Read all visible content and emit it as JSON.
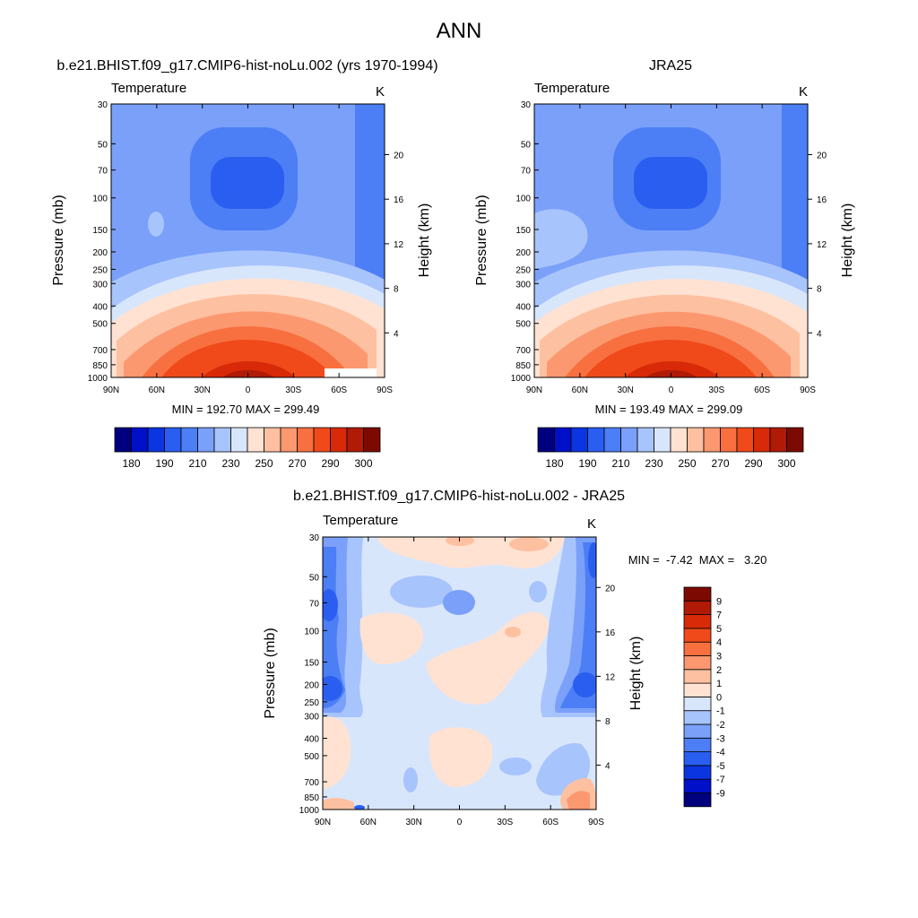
{
  "figure": {
    "title": "ANN"
  },
  "colors": {
    "abs_levels": [
      "#00007f",
      "#0010c8",
      "#0a35e0",
      "#2a5ef0",
      "#4c7ef5",
      "#7aa0fa",
      "#a8c4fc",
      "#d8e6fc",
      "#ffe2d2",
      "#fdc0a0",
      "#fb9870",
      "#f87040",
      "#f04a1a",
      "#d82a08",
      "#b01a06",
      "#7c0a02"
    ],
    "diff_levels": [
      "#00007f",
      "#0010c8",
      "#0a35e0",
      "#2a5ef0",
      "#4c7ef5",
      "#7aa0fa",
      "#a8c4fc",
      "#d8e6fc",
      "#ffe2d2",
      "#fdc0a0",
      "#fb9870",
      "#f87040",
      "#f04a1a",
      "#d82a08",
      "#b01a06",
      "#7c0a02"
    ]
  },
  "chart_data": [
    {
      "type": "heatmap",
      "title": "b.e21.BHIST.f09_g17.CMIP6-hist-noLu.002 (yrs 1970-1994)",
      "subtitle_left": "Temperature",
      "subtitle_right": "K",
      "xlabel": "",
      "ylabel": "Pressure (mb)",
      "ylabel_right": "Height (km)",
      "x_ticks": [
        "90N",
        "60N",
        "30N",
        "0",
        "30S",
        "60S",
        "90S"
      ],
      "y_ticks": [
        "30",
        "50",
        "70",
        "100",
        "150",
        "200",
        "250",
        "300",
        "400",
        "500",
        "700",
        "850",
        "1000"
      ],
      "y_right_ticks": [
        "20",
        "16",
        "12",
        "8",
        "4"
      ],
      "stats": "MIN = 192.70  MAX = 299.49",
      "min": 192.7,
      "max": 299.49,
      "colorbar_labels": [
        "180",
        "190",
        "210",
        "230",
        "250",
        "270",
        "290",
        "300"
      ]
    },
    {
      "type": "heatmap",
      "title": "JRA25",
      "subtitle_left": "Temperature",
      "subtitle_right": "K",
      "xlabel": "",
      "ylabel": "Pressure (mb)",
      "ylabel_right": "Height (km)",
      "x_ticks": [
        "90N",
        "60N",
        "30N",
        "0",
        "30S",
        "60S",
        "90S"
      ],
      "y_ticks": [
        "30",
        "50",
        "70",
        "100",
        "150",
        "200",
        "250",
        "300",
        "400",
        "500",
        "700",
        "850",
        "1000"
      ],
      "y_right_ticks": [
        "20",
        "16",
        "12",
        "8",
        "4"
      ],
      "stats": "MIN = 193.49  MAX = 299.09",
      "min": 193.49,
      "max": 299.09,
      "colorbar_labels": [
        "180",
        "190",
        "210",
        "230",
        "250",
        "270",
        "290",
        "300"
      ]
    },
    {
      "type": "heatmap",
      "title": "b.e21.BHIST.f09_g17.CMIP6-hist-noLu.002 - JRA25",
      "subtitle_left": "Temperature",
      "subtitle_right": "K",
      "xlabel": "",
      "ylabel": "Pressure (mb)",
      "ylabel_right": "Height (km)",
      "x_ticks": [
        "90N",
        "60N",
        "30N",
        "0",
        "30S",
        "60S",
        "90S"
      ],
      "y_ticks": [
        "30",
        "50",
        "70",
        "100",
        "150",
        "200",
        "250",
        "300",
        "400",
        "500",
        "700",
        "850",
        "1000"
      ],
      "y_right_ticks": [
        "20",
        "16",
        "12",
        "8",
        "4"
      ],
      "stats": "MIN =  -7.42  MAX =   3.20",
      "min": -7.42,
      "max": 3.2,
      "colorbar_labels": [
        "9",
        "7",
        "5",
        "4",
        "3",
        "2",
        "1",
        "0",
        "-1",
        "-2",
        "-3",
        "-4",
        "-5",
        "-7",
        "-9"
      ]
    }
  ]
}
